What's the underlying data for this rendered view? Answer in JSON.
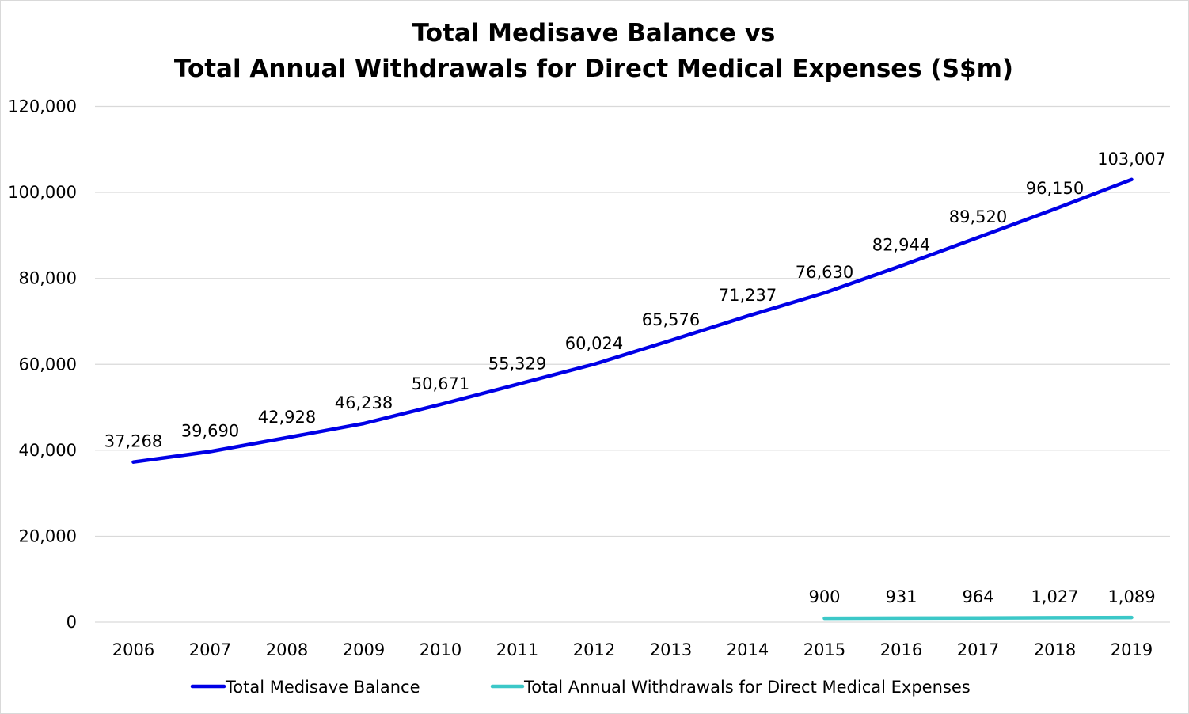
{
  "chart_data": {
    "type": "line",
    "title_lines": [
      "Total Medisave Balance vs",
      "Total Annual Withdrawals for Direct Medical Expenses (S$m)"
    ],
    "xlabel": "",
    "ylabel": "",
    "categories": [
      "2006",
      "2007",
      "2008",
      "2009",
      "2010",
      "2011",
      "2012",
      "2013",
      "2014",
      "2015",
      "2016",
      "2017",
      "2018",
      "2019"
    ],
    "ylim": [
      0,
      120000
    ],
    "yticks": [
      0,
      20000,
      40000,
      60000,
      80000,
      100000,
      120000
    ],
    "ytick_labels": [
      "0",
      "20,000",
      "40,000",
      "60,000",
      "80,000",
      "100,000",
      "120,000"
    ],
    "grid": true,
    "legend_position": "bottom",
    "series": [
      {
        "name": "Total Medisave Balance",
        "color": "#0000e6",
        "values": [
          37268,
          39690,
          42928,
          46238,
          50671,
          55329,
          60024,
          65576,
          71237,
          76630,
          82944,
          89520,
          96150,
          103007
        ],
        "labels": [
          "37,268",
          "39,690",
          "42,928",
          "46,238",
          "50,671",
          "55,329",
          "60,024",
          "65,576",
          "71,237",
          "76,630",
          "82,944",
          "89,520",
          "96,150",
          "103,007"
        ]
      },
      {
        "name": "Total Annual Withdrawals for Direct Medical Expenses",
        "color": "#3cc8c8",
        "values": [
          null,
          null,
          null,
          null,
          null,
          null,
          null,
          null,
          null,
          900,
          931,
          964,
          1027,
          1089
        ],
        "labels": [
          null,
          null,
          null,
          null,
          null,
          null,
          null,
          null,
          null,
          "900",
          "931",
          "964",
          "1,027",
          "1,089"
        ]
      }
    ]
  }
}
